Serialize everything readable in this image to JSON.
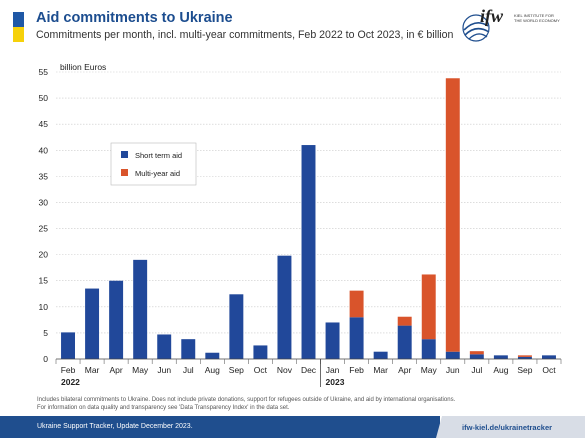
{
  "header": {
    "title": "Aid commitments to Ukraine",
    "subtitle": "Commitments per month, incl. multi-year commitments, Feb 2022 to Oct 2023, in € billion"
  },
  "logo": {
    "mark": "ifw",
    "institute_line1": "KIEL INSTITUTE FOR",
    "institute_line2": "THE WORLD ECONOMY"
  },
  "footnote": {
    "line1": "Includes bilateral commitments to Ukraine. Does not include private donations, support for refugees outside of Ukraine, and aid by international organisations.",
    "line2": "For information on data quality and transparency see 'Data Transparency Index' in the data set."
  },
  "footer": {
    "left_text": "Ukraine Support Tracker, Update December 2023.",
    "link_text": "ifw-kiel.de/ukrainetracker"
  },
  "colors": {
    "short_term": "#21489a",
    "multi_year": "#d9542b",
    "brand_blue": "#1f4e8e",
    "flag_yellow": "#f6d10a"
  },
  "chart_data": {
    "type": "bar",
    "stacked": true,
    "ylabel": "billion Euros",
    "ylim": [
      0,
      55
    ],
    "yticks": [
      0,
      5,
      10,
      15,
      20,
      25,
      30,
      35,
      40,
      45,
      50,
      55
    ],
    "grid": true,
    "legend_position": "upper-left",
    "categories": [
      "Feb",
      "Mar",
      "Apr",
      "May",
      "Jun",
      "Jul",
      "Aug",
      "Sep",
      "Oct",
      "Nov",
      "Dec",
      "Jan",
      "Feb",
      "Mar",
      "Apr",
      "May",
      "Jun",
      "Jul",
      "Aug",
      "Sep",
      "Oct"
    ],
    "year_labels": [
      {
        "label": "2022",
        "start_index": 0
      },
      {
        "label": "2023",
        "start_index": 11
      }
    ],
    "series": [
      {
        "name": "Short term aid",
        "color": "#21489a",
        "values": [
          5.1,
          13.5,
          15.0,
          19.0,
          4.7,
          3.8,
          1.2,
          12.4,
          2.6,
          19.8,
          41.0,
          7.0,
          8.0,
          1.4,
          6.4,
          3.8,
          1.4,
          0.9,
          0.7,
          0.4,
          0.7
        ]
      },
      {
        "name": "Multi-year aid",
        "color": "#d9542b",
        "values": [
          0,
          0,
          0,
          0,
          0,
          0,
          0,
          0,
          0,
          0,
          0,
          0,
          5.1,
          0,
          1.7,
          12.4,
          52.4,
          0.6,
          0,
          0.3,
          0
        ]
      }
    ]
  }
}
